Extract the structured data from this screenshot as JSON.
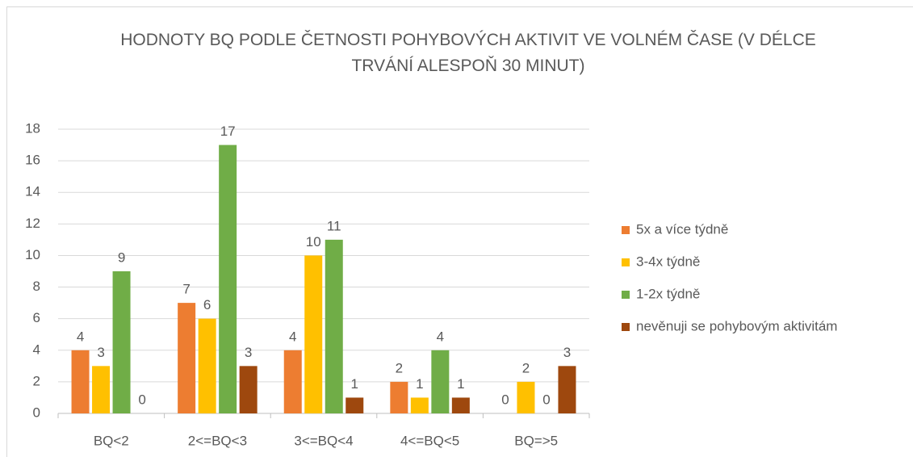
{
  "chart_data": {
    "type": "bar",
    "title": "HODNOTY BQ PODLE ČETNOSTI POHYBOVÝCH AKTIVIT VE VOLNÉM ČASE (V DÉLCE TRVÁNÍ ALESPOŇ 30 MINUT)",
    "categories": [
      "BQ<2",
      "2<=BQ<3",
      "3<=BQ<4",
      "4<=BQ<5",
      "BQ=>5"
    ],
    "series": [
      {
        "name": "5x a více týdně",
        "color": "#ed7d31",
        "values": [
          4,
          7,
          4,
          2,
          0
        ]
      },
      {
        "name": "3-4x týdně",
        "color": "#ffc000",
        "values": [
          3,
          6,
          10,
          1,
          2
        ]
      },
      {
        "name": "1-2x týdně",
        "color": "#70ad47",
        "values": [
          9,
          17,
          11,
          4,
          0
        ]
      },
      {
        "name": "nevěnuji se pohybovým aktivitám",
        "color": "#9e480e",
        "values": [
          0,
          3,
          1,
          1,
          3
        ]
      }
    ],
    "ylim": [
      0,
      18
    ],
    "yticks": [
      0,
      2,
      4,
      6,
      8,
      10,
      12,
      14,
      16,
      18
    ],
    "grid": true,
    "legend": "right"
  }
}
